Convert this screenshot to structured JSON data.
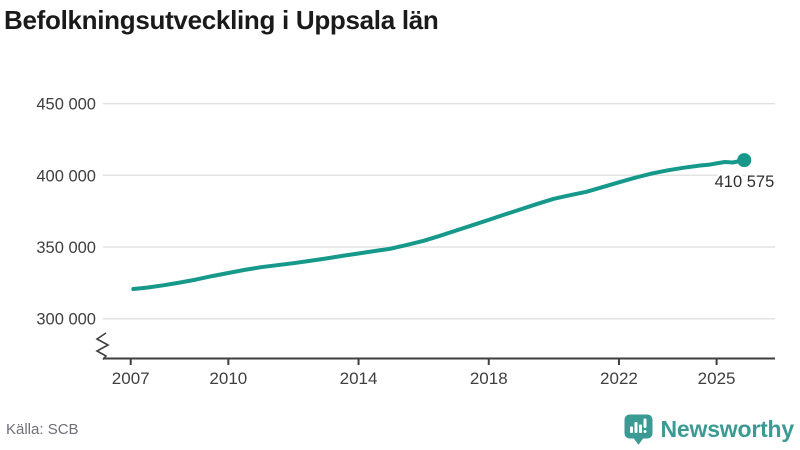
{
  "title": "Befolkningsutveckling i Uppsala län",
  "source": "Källa: SCB",
  "branding": {
    "name": "Newsworthy",
    "color": "#3a9a94"
  },
  "colors": {
    "line": "#16998b",
    "grid": "#e3e3e3",
    "axis": "#3f3f3f",
    "tick_label": "#3f3f3f",
    "endpoint_label": "#2e2e2e",
    "title": "#1a1a1a",
    "source_text": "#6f6f78"
  },
  "chart_data": {
    "type": "line",
    "title": "Befolkningsutveckling i Uppsala län",
    "source": "SCB",
    "grid": "horizontal",
    "axis_break": true,
    "xlim": [
      2006.2,
      2026.0
    ],
    "ylim": [
      272000,
      462000
    ],
    "x_ticks": [
      {
        "value": 2007,
        "label": "2007"
      },
      {
        "value": 2010,
        "label": "2010"
      },
      {
        "value": 2014,
        "label": "2014"
      },
      {
        "value": 2018,
        "label": "2018"
      },
      {
        "value": 2022,
        "label": "2022"
      },
      {
        "value": 2025,
        "label": "2025"
      }
    ],
    "y_ticks": [
      {
        "value": 300000,
        "label": "300 000"
      },
      {
        "value": 350000,
        "label": "350 000"
      },
      {
        "value": 400000,
        "label": "400 000"
      },
      {
        "value": 450000,
        "label": "450 000"
      }
    ],
    "endpoint_label": "410 575",
    "endpoint_value": 410575,
    "points": [
      [
        2007.08,
        320700
      ],
      [
        2007.5,
        321700
      ],
      [
        2008.0,
        323300
      ],
      [
        2008.5,
        325200
      ],
      [
        2009.0,
        327300
      ],
      [
        2009.5,
        329700
      ],
      [
        2010.0,
        331900
      ],
      [
        2010.5,
        334000
      ],
      [
        2011.0,
        335900
      ],
      [
        2011.5,
        337300
      ],
      [
        2012.0,
        338700
      ],
      [
        2012.5,
        340300
      ],
      [
        2013.0,
        342000
      ],
      [
        2013.5,
        343800
      ],
      [
        2014.0,
        345500
      ],
      [
        2014.5,
        347200
      ],
      [
        2015.0,
        348900
      ],
      [
        2015.5,
        351500
      ],
      [
        2016.0,
        354300
      ],
      [
        2016.5,
        357800
      ],
      [
        2017.0,
        361500
      ],
      [
        2017.5,
        365200
      ],
      [
        2018.0,
        368900
      ],
      [
        2018.5,
        372700
      ],
      [
        2019.0,
        376400
      ],
      [
        2019.5,
        380100
      ],
      [
        2020.0,
        383600
      ],
      [
        2020.5,
        386100
      ],
      [
        2021.0,
        388500
      ],
      [
        2021.5,
        391800
      ],
      [
        2022.0,
        395100
      ],
      [
        2022.5,
        398300
      ],
      [
        2023.0,
        401200
      ],
      [
        2023.5,
        403500
      ],
      [
        2024.0,
        405300
      ],
      [
        2024.5,
        406800
      ],
      [
        2024.75,
        407300
      ],
      [
        2025.0,
        408300
      ],
      [
        2025.25,
        409300
      ],
      [
        2025.5,
        408900
      ],
      [
        2025.85,
        410575
      ]
    ]
  }
}
